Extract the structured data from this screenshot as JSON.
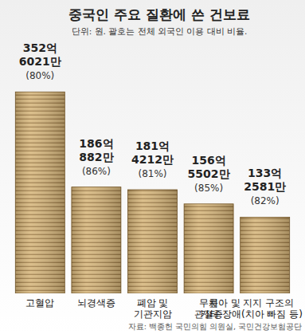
{
  "chart_data": {
    "type": "bar",
    "title": "중국인 주요 질환에 쓴 건보료",
    "subtitle": "단위: 원. 괄호는 전체 외국인 이용 대비 비율.",
    "source": "자료: 백종헌 국민의힘 의원실, 국민건강보험공단",
    "categories": [
      "고혈압",
      "뇌경색증",
      "폐암 및\n기관지암",
      "무릎\n관절증",
      "치아 및 지지 구조의\n기타 장애(치아 빠짐 등)"
    ],
    "values": [
      35260210000,
      18608820000,
      18142120000,
      15655020000,
      13325810000
    ],
    "value_labels": [
      "352억\n6021만",
      "186억\n882만",
      "181억\n4212만",
      "156억\n5502만",
      "133억\n2581만"
    ],
    "shares": [
      80,
      86,
      81,
      85,
      82
    ],
    "share_labels": [
      "(80%)",
      "(86%)",
      "(81%)",
      "(85%)",
      "(82%)"
    ],
    "color": "#d6b67c",
    "ylim": [
      0,
      36000000000
    ],
    "data_labels": true,
    "tick_labels": false,
    "grid": false
  }
}
